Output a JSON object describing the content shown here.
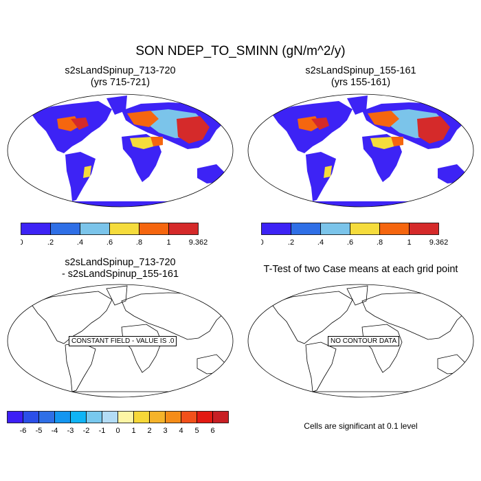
{
  "figure": {
    "title": "SON NDEP_TO_SMINN (gN/m^2/y)",
    "footnote": "Cells are significant at 0.1 level"
  },
  "panels": [
    {
      "title_line1": "s2sLandSpinup_713-720",
      "title_line2": "(yrs 715-721)"
    },
    {
      "title_line1": "s2sLandSpinup_155-161",
      "title_line2": "(yrs 155-161)"
    },
    {
      "title_line1": "s2sLandSpinup_713-720",
      "title_line2": "- s2sLandSpinup_155-161",
      "message": "CONSTANT FIELD - VALUE IS .0"
    },
    {
      "title_line1": "T-Test of two Case means at each grid point",
      "message": "NO CONTOUR DATA"
    }
  ],
  "colorbars": {
    "field": {
      "labels": [
        "0",
        ".2",
        ".4",
        ".6",
        ".8",
        "1",
        "9.362"
      ],
      "colors": [
        "#3d23f5",
        "#2f6fe6",
        "#7bc4ea",
        "#f5dc3c",
        "#f5660f",
        "#d52a2a"
      ]
    },
    "diff": {
      "labels": [
        "-6",
        "-5",
        "-4",
        "-3",
        "-2",
        "-1",
        "0",
        "1",
        "2",
        "3",
        "4",
        "5",
        "6"
      ],
      "colors": [
        "#3d1ff5",
        "#2b4fe8",
        "#2f6fe6",
        "#1496f0",
        "#10b4f5",
        "#78c8ee",
        "#b3dcf5",
        "#fdf5a5",
        "#f7d838",
        "#f5b32a",
        "#f58c18",
        "#f2501a",
        "#e31a12",
        "#c81f24"
      ]
    }
  },
  "chart_data": {
    "type": "map",
    "projection": "Robinson",
    "variable": "NDEP_TO_SMINN",
    "season": "SON",
    "units": "gN/m^2/y",
    "contour_levels": [
      0,
      0.2,
      0.4,
      0.6,
      0.8,
      1,
      9.362
    ],
    "difference_levels": [
      -6,
      -5,
      -4,
      -3,
      -2,
      -1,
      0,
      1,
      2,
      3,
      4,
      5,
      6
    ],
    "difference_field_constant_value": 0.0
  }
}
